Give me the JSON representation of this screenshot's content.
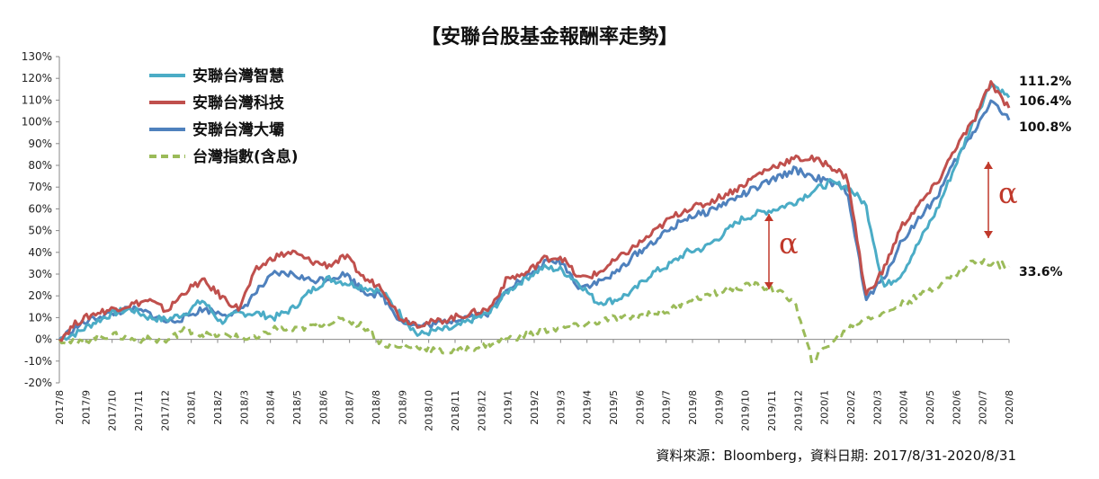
{
  "chart_data": {
    "type": "line",
    "title": "【安聯台股基金報酬率走勢】",
    "source_note": "資料來源：Bloomberg，資料日期: 2017/8/31-2020/8/31",
    "ylim": [
      -20,
      130
    ],
    "y_ticks": [
      "130%",
      "120%",
      "110%",
      "100%",
      "90%",
      "80%",
      "70%",
      "60%",
      "50%",
      "40%",
      "30%",
      "20%",
      "10%",
      "0%",
      "-10%",
      "-20%"
    ],
    "x_ticks": [
      "2017/8",
      "2017/9",
      "2017/10",
      "2017/11",
      "2017/12",
      "2018/1",
      "2018/2",
      "2018/3",
      "2018/4",
      "2018/5",
      "2018/6",
      "2018/7",
      "2018/8",
      "2018/9",
      "2018/10",
      "2018/11",
      "2018/12",
      "2019/1",
      "2019/2",
      "2019/3",
      "2019/4",
      "2019/5",
      "2019/6",
      "2019/7",
      "2019/8",
      "2019/9",
      "2019/10",
      "2019/11",
      "2019/12",
      "2020/1",
      "2020/2",
      "2020/3",
      "2020/4",
      "2020/5",
      "2020/6",
      "2020/7",
      "2020/8"
    ],
    "grid": false,
    "legend_position": "top-left",
    "annotations": {
      "alpha_symbol": "α",
      "end_labels": [
        "111.2%",
        "106.4%",
        "100.8%",
        "33.6%"
      ]
    },
    "series": [
      {
        "name": "安聯台灣智慧",
        "color": "#4bacc6",
        "style": "solid",
        "values": [
          0,
          3,
          8,
          12,
          14,
          10,
          9,
          12,
          18,
          8,
          12,
          12,
          10,
          14,
          22,
          28,
          26,
          24,
          22,
          12,
          2,
          4,
          5,
          9,
          12,
          22,
          28,
          33,
          32,
          26,
          17,
          18,
          22,
          30,
          34,
          40,
          42,
          48,
          55,
          58,
          60,
          63,
          68,
          72,
          70,
          62,
          24,
          30,
          45,
          60,
          80,
          100,
          118,
          111.2
        ]
      },
      {
        "name": "安聯台灣科技",
        "color": "#c0504d",
        "style": "solid",
        "values": [
          0,
          8,
          12,
          14,
          16,
          18,
          13,
          22,
          27,
          20,
          14,
          32,
          38,
          40,
          36,
          34,
          38,
          28,
          24,
          10,
          7,
          8,
          10,
          12,
          14,
          28,
          30,
          37,
          38,
          28,
          30,
          36,
          42,
          48,
          55,
          60,
          62,
          66,
          70,
          76,
          80,
          83,
          83,
          80,
          74,
          20,
          32,
          52,
          62,
          72,
          88,
          100,
          118,
          106.4
        ]
      },
      {
        "name": "安聯台灣大壩",
        "color": "#4f81bd",
        "style": "solid",
        "values": [
          0,
          6,
          10,
          12,
          14,
          12,
          8,
          10,
          14,
          12,
          12,
          22,
          30,
          30,
          27,
          28,
          30,
          22,
          20,
          9,
          6,
          7,
          9,
          11,
          12,
          24,
          28,
          35,
          36,
          24,
          26,
          30,
          38,
          44,
          50,
          56,
          58,
          62,
          66,
          70,
          74,
          78,
          75,
          72,
          68,
          18,
          28,
          45,
          56,
          66,
          82,
          95,
          110,
          100.8
        ]
      },
      {
        "name": "台灣指數(含息)",
        "color": "#9bbb59",
        "style": "dashed",
        "values": [
          0,
          -2,
          1,
          2,
          0,
          0,
          -1,
          5,
          2,
          2,
          1,
          0,
          5,
          4,
          6,
          8,
          9,
          6,
          -2,
          -4,
          -3,
          -5,
          -6,
          -4,
          -2,
          0,
          2,
          4,
          5,
          6,
          8,
          10,
          10,
          12,
          13,
          18,
          20,
          22,
          24,
          25,
          22,
          18,
          -10,
          -2,
          5,
          10,
          12,
          16,
          20,
          25,
          30,
          36,
          35,
          33.6
        ]
      }
    ]
  }
}
